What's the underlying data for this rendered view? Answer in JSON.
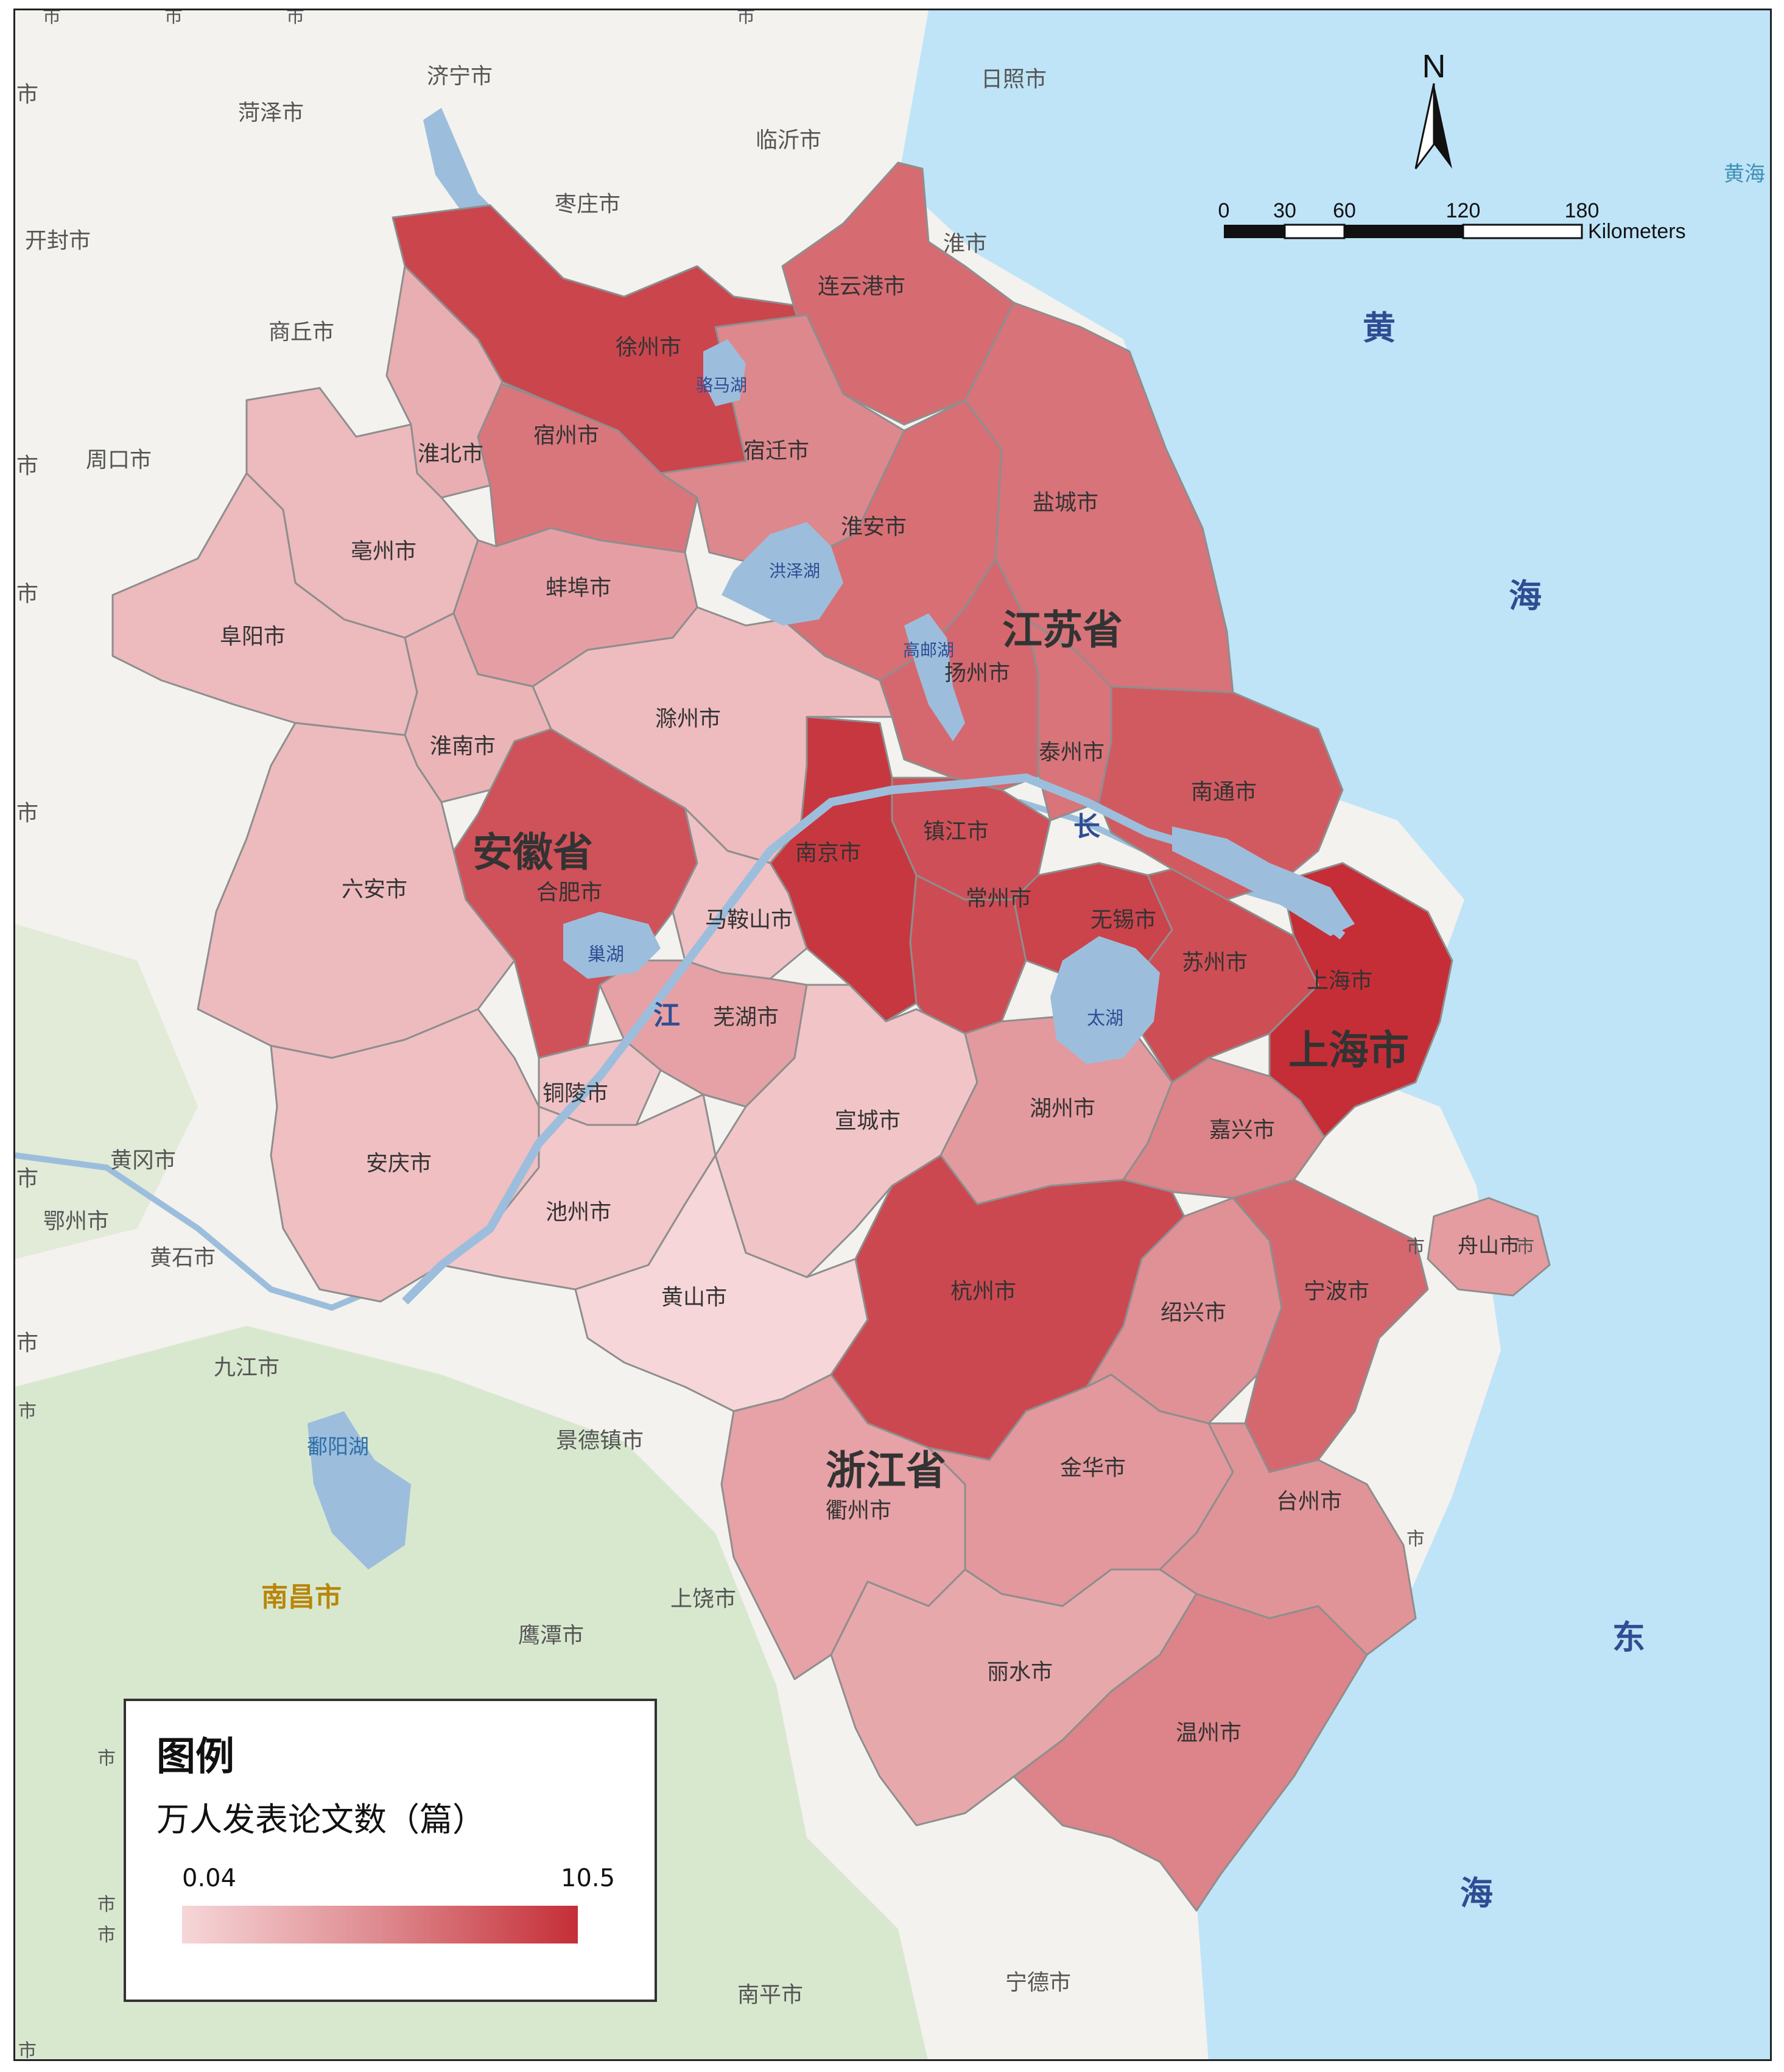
{
  "colors": {
    "sea": "#bfe4f7",
    "land": "#f3f2ee",
    "lake": "#9cbedc",
    "forest": "#d8e8cf",
    "boundary": "#8e8e8e",
    "ramp_low": "#f6d6d8",
    "ramp_mid": "#de8a8f",
    "ramp_high": "#c52e37"
  },
  "north_arrow": {
    "label": "N"
  },
  "scale_bar": {
    "ticks": [
      "0",
      "30",
      "60",
      "120",
      "180"
    ],
    "unit": "Kilometers"
  },
  "legend": {
    "title": "图例",
    "subtitle": "万人发表论文数（篇）",
    "min": "0.04",
    "max": "10.5"
  },
  "province_labels": {
    "jiangsu": "江苏省",
    "anhui": "安徽省",
    "zhejiang": "浙江省",
    "shanghai": "上海市"
  },
  "sea_labels": {
    "huang": "黄",
    "hai1": "海",
    "dong": "东",
    "hai2": "海",
    "huang_edge": "黄海",
    "chang": "长",
    "jiang": "江"
  },
  "lake_labels": {
    "luoma": "骆马湖",
    "hongze": "洪泽湖",
    "gaoyou": "高邮湖",
    "chao": "巢湖",
    "tai": "太湖",
    "poyang": "鄱阳湖"
  },
  "outside_cities": {
    "jining": "济宁市",
    "heze": "菏泽市",
    "rizhao": "日照市",
    "linyi": "临沂市",
    "zaozhuang": "枣庄市",
    "kaifeng": "开封市",
    "shangqiu": "商丘市",
    "zhoukou": "周口市",
    "huanggang": "黄冈市",
    "ezhou": "鄂州市",
    "huangshi": "黄石市",
    "jiujiang": "九江市",
    "jingdezhen": "景德镇市",
    "nanchang": "南昌市",
    "shangrao": "上饶市",
    "yingtan": "鹰潭市",
    "nanping": "南平市",
    "ningde": "宁德市",
    "huai_edge": "淮市",
    "edge_1": "市",
    "edge_2": "市",
    "edge_3": "市",
    "edge_4": "市",
    "edge_5": "市",
    "edge_6": "市",
    "edge_7": "市",
    "edge_8": "市",
    "edge_9": "市",
    "edge_10": "市",
    "edge_11": "市",
    "edge_12": "市",
    "edge_13": "市",
    "edge_14": "市",
    "edge_15": "市",
    "edge_16": "市",
    "edge_17": "市",
    "edge_18": "市"
  },
  "cities": [
    {
      "key": "xuzhou",
      "name": "徐州市",
      "value": 9.2
    },
    {
      "key": "lianyungang",
      "name": "连云港市",
      "value": 7.0
    },
    {
      "key": "suqian",
      "name": "宿迁市",
      "value": 5.4
    },
    {
      "key": "huaian",
      "name": "淮安市",
      "value": 6.8
    },
    {
      "key": "yancheng",
      "name": "盐城市",
      "value": 6.6
    },
    {
      "key": "yangzhou",
      "name": "扬州市",
      "value": 7.2
    },
    {
      "key": "taizhou_js",
      "name": "泰州市",
      "value": 6.5
    },
    {
      "key": "nantong",
      "name": "南通市",
      "value": 8.0
    },
    {
      "key": "nanjing",
      "name": "南京市",
      "value": 10.0
    },
    {
      "key": "zhenjiang",
      "name": "镇江市",
      "value": 8.6
    },
    {
      "key": "changzhou",
      "name": "常州市",
      "value": 8.8
    },
    {
      "key": "wuxi",
      "name": "无锡市",
      "value": 9.3
    },
    {
      "key": "suzhou",
      "name": "苏州市",
      "value": 8.7
    },
    {
      "key": "shanghai",
      "name": "上海市",
      "value": 10.5
    },
    {
      "key": "suzhou_ah",
      "name": "宿州市",
      "value": 6.4
    },
    {
      "key": "huaibei",
      "name": "淮北市",
      "value": 2.8
    },
    {
      "key": "bozhou",
      "name": "亳州市",
      "value": 2.0
    },
    {
      "key": "bengbu",
      "name": "蚌埠市",
      "value": 3.8
    },
    {
      "key": "fuyang",
      "name": "阜阳市",
      "value": 2.0
    },
    {
      "key": "huainan",
      "name": "淮南市",
      "value": 2.4
    },
    {
      "key": "chuzhou",
      "name": "滁州市",
      "value": 1.8
    },
    {
      "key": "luan",
      "name": "六安市",
      "value": 1.9
    },
    {
      "key": "hefei",
      "name": "合肥市",
      "value": 8.5
    },
    {
      "key": "maanshan",
      "name": "马鞍山市",
      "value": 1.5
    },
    {
      "key": "wuhu",
      "name": "芜湖市",
      "value": 3.7
    },
    {
      "key": "tongling",
      "name": "铜陵市",
      "value": 1.4
    },
    {
      "key": "anqing",
      "name": "安庆市",
      "value": 1.6
    },
    {
      "key": "chizhou",
      "name": "池州市",
      "value": 1.0
    },
    {
      "key": "xuancheng",
      "name": "宣城市",
      "value": 1.2
    },
    {
      "key": "huangshan",
      "name": "黄山市",
      "value": 0.04
    },
    {
      "key": "huzhou",
      "name": "湖州市",
      "value": 4.2
    },
    {
      "key": "jiaxing",
      "name": "嘉兴市",
      "value": 5.6
    },
    {
      "key": "hangzhou",
      "name": "杭州市",
      "value": 9.0
    },
    {
      "key": "shaoxing",
      "name": "绍兴市",
      "value": 4.8
    },
    {
      "key": "ningbo",
      "name": "宁波市",
      "value": 7.2
    },
    {
      "key": "zhoushan",
      "name": "舟山市",
      "value": 4.0
    },
    {
      "key": "quzhou",
      "name": "衢州市",
      "value": 3.6
    },
    {
      "key": "jinhua",
      "name": "金华市",
      "value": 4.3
    },
    {
      "key": "taizhou_zj",
      "name": "台州市",
      "value": 4.6
    },
    {
      "key": "lishui",
      "name": "丽水市",
      "value": 3.2
    },
    {
      "key": "wenzhou",
      "name": "温州市",
      "value": 5.6
    }
  ]
}
